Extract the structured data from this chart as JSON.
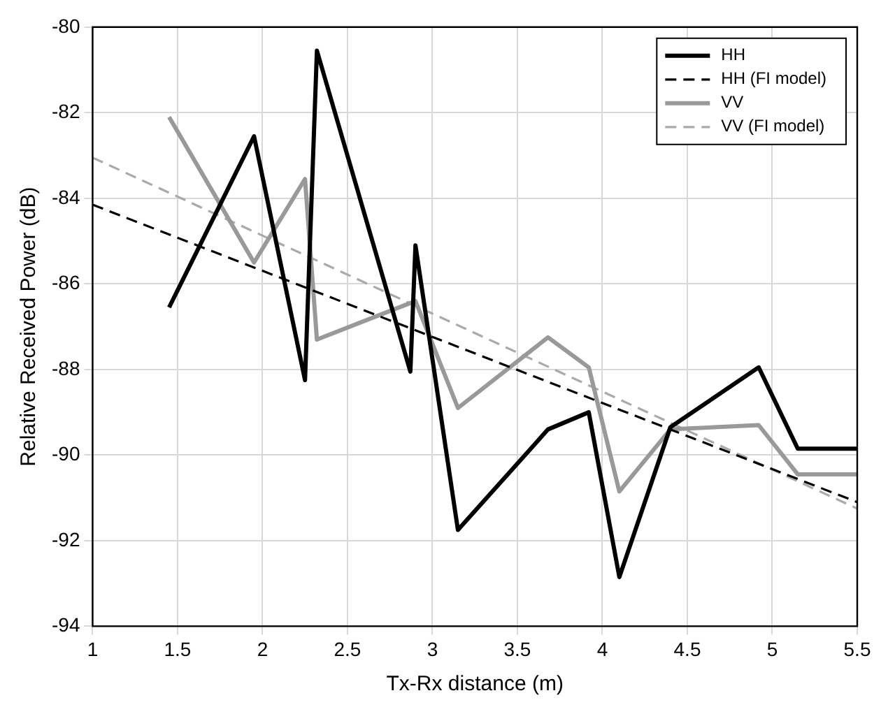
{
  "chart_data": {
    "type": "line",
    "xlabel": "Tx-Rx distance (m)",
    "ylabel": "Relative Received Power (dB)",
    "xlim": [
      1,
      5.5
    ],
    "xticks": [
      1,
      1.5,
      2,
      2.5,
      3,
      3.5,
      4,
      4.5,
      5,
      5.5
    ],
    "ylim": [
      -94,
      -80
    ],
    "yticks": [
      -94,
      -92,
      -90,
      -88,
      -86,
      -84,
      -82,
      -80
    ],
    "grid": true,
    "legend": "top right",
    "marker": "none",
    "series": [
      {
        "name": "HH",
        "color": "#000000",
        "line_style": "solid",
        "x": [
          1.45,
          1.95,
          2.25,
          2.32,
          2.87,
          2.9,
          3.15,
          3.68,
          3.92,
          4.1,
          4.4,
          4.92,
          5.15,
          5.5
        ],
        "values": [
          -86.55,
          -82.55,
          -88.25,
          -80.55,
          -88.05,
          -85.1,
          -91.75,
          -89.4,
          -89.0,
          -92.85,
          -89.35,
          -87.95,
          -89.85,
          -89.85
        ]
      },
      {
        "name": "HH (FI model)",
        "color": "#000000",
        "line_style": "dashed",
        "x": [
          1,
          5.5
        ],
        "values": [
          -84.15,
          -91.1
        ]
      },
      {
        "name": "VV",
        "color": "#999999",
        "line_style": "solid",
        "x": [
          1.45,
          1.95,
          2.25,
          2.32,
          2.9,
          3.15,
          3.68,
          3.92,
          4.1,
          4.4,
          4.92,
          5.15,
          5.5
        ],
        "values": [
          -82.1,
          -85.5,
          -83.55,
          -87.3,
          -86.4,
          -88.9,
          -87.25,
          -87.95,
          -90.85,
          -89.4,
          -89.3,
          -90.45,
          -90.45
        ]
      },
      {
        "name": "VV (FI model)",
        "color": "#aaaaaa",
        "line_style": "dashed",
        "x": [
          1,
          5.5
        ],
        "values": [
          -83.05,
          -91.25
        ]
      }
    ]
  }
}
